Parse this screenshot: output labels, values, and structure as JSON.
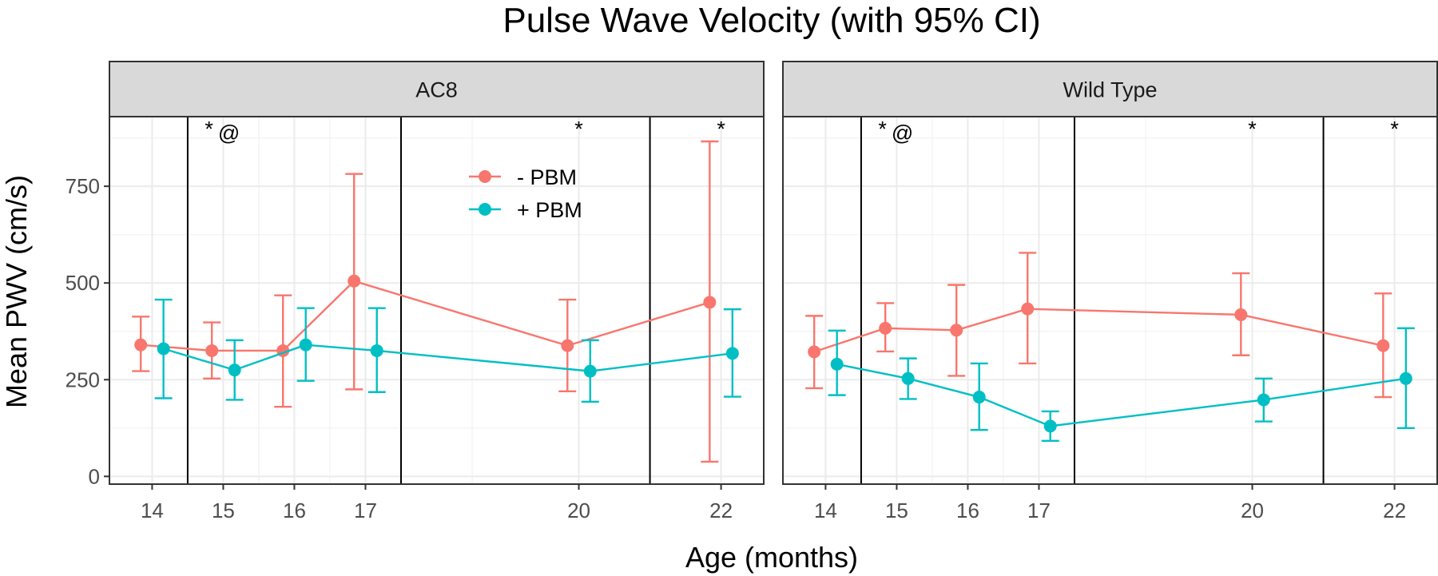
{
  "chart_data": {
    "type": "line",
    "title": "Pulse Wave Velocity (with 95% CI)",
    "xlabel": "Age (months)",
    "ylabel": "Mean PWV (cm/s)",
    "xlim": [
      13.4,
      22.6
    ],
    "ylim": [
      -20,
      930
    ],
    "x_ticks": [
      14,
      15,
      16,
      17,
      20,
      22
    ],
    "y_ticks": [
      0,
      250,
      500,
      750
    ],
    "legend": {
      "position": "inside-top",
      "entries": [
        "- PBM",
        "+ PBM"
      ]
    },
    "series_colors": {
      "- PBM": "#F8766D",
      "+ PBM": "#00BFC4"
    },
    "dodge_months": 0.16,
    "panels": [
      {
        "name": "AC8",
        "vlines": [
          14.5,
          17.5,
          21
        ],
        "annotations": [
          {
            "x": 14.8,
            "y": 900,
            "text": "*"
          },
          {
            "x": 15.08,
            "y": 890,
            "text": "@"
          },
          {
            "x": 20,
            "y": 900,
            "text": "*"
          },
          {
            "x": 22,
            "y": 900,
            "text": "*"
          }
        ],
        "series": [
          {
            "name": "- PBM",
            "points": [
              {
                "x": 14,
                "mean": 340,
                "lo": 272,
                "hi": 413
              },
              {
                "x": 15,
                "mean": 325,
                "lo": 253,
                "hi": 398
              },
              {
                "x": 16,
                "mean": 325,
                "lo": 180,
                "hi": 468
              },
              {
                "x": 17,
                "mean": 505,
                "lo": 225,
                "hi": 782
              },
              {
                "x": 20,
                "mean": 338,
                "lo": 220,
                "hi": 457
              },
              {
                "x": 22,
                "mean": 450,
                "lo": 38,
                "hi": 866
              }
            ]
          },
          {
            "name": "+ PBM",
            "points": [
              {
                "x": 14,
                "mean": 330,
                "lo": 202,
                "hi": 457
              },
              {
                "x": 15,
                "mean": 275,
                "lo": 198,
                "hi": 352
              },
              {
                "x": 16,
                "mean": 340,
                "lo": 247,
                "hi": 435
              },
              {
                "x": 17,
                "mean": 325,
                "lo": 218,
                "hi": 435
              },
              {
                "x": 20,
                "mean": 272,
                "lo": 193,
                "hi": 352
              },
              {
                "x": 22,
                "mean": 318,
                "lo": 206,
                "hi": 432
              }
            ]
          }
        ]
      },
      {
        "name": "Wild Type",
        "vlines": [
          14.5,
          17.5,
          21
        ],
        "annotations": [
          {
            "x": 14.8,
            "y": 900,
            "text": "*"
          },
          {
            "x": 15.08,
            "y": 890,
            "text": "@"
          },
          {
            "x": 20,
            "y": 900,
            "text": "*"
          },
          {
            "x": 22,
            "y": 900,
            "text": "*"
          }
        ],
        "series": [
          {
            "name": "- PBM",
            "points": [
              {
                "x": 14,
                "mean": 322,
                "lo": 228,
                "hi": 415
              },
              {
                "x": 15,
                "mean": 383,
                "lo": 323,
                "hi": 448
              },
              {
                "x": 16,
                "mean": 378,
                "lo": 260,
                "hi": 495
              },
              {
                "x": 17,
                "mean": 433,
                "lo": 292,
                "hi": 578
              },
              {
                "x": 20,
                "mean": 418,
                "lo": 313,
                "hi": 525
              },
              {
                "x": 22,
                "mean": 338,
                "lo": 205,
                "hi": 473
              }
            ]
          },
          {
            "name": "+ PBM",
            "points": [
              {
                "x": 14,
                "mean": 290,
                "lo": 210,
                "hi": 377
              },
              {
                "x": 15,
                "mean": 253,
                "lo": 200,
                "hi": 305
              },
              {
                "x": 16,
                "mean": 205,
                "lo": 120,
                "hi": 292
              },
              {
                "x": 17,
                "mean": 130,
                "lo": 92,
                "hi": 168
              },
              {
                "x": 20,
                "mean": 198,
                "lo": 142,
                "hi": 253
              },
              {
                "x": 22,
                "mean": 253,
                "lo": 125,
                "hi": 383
              }
            ]
          }
        ]
      }
    ]
  }
}
